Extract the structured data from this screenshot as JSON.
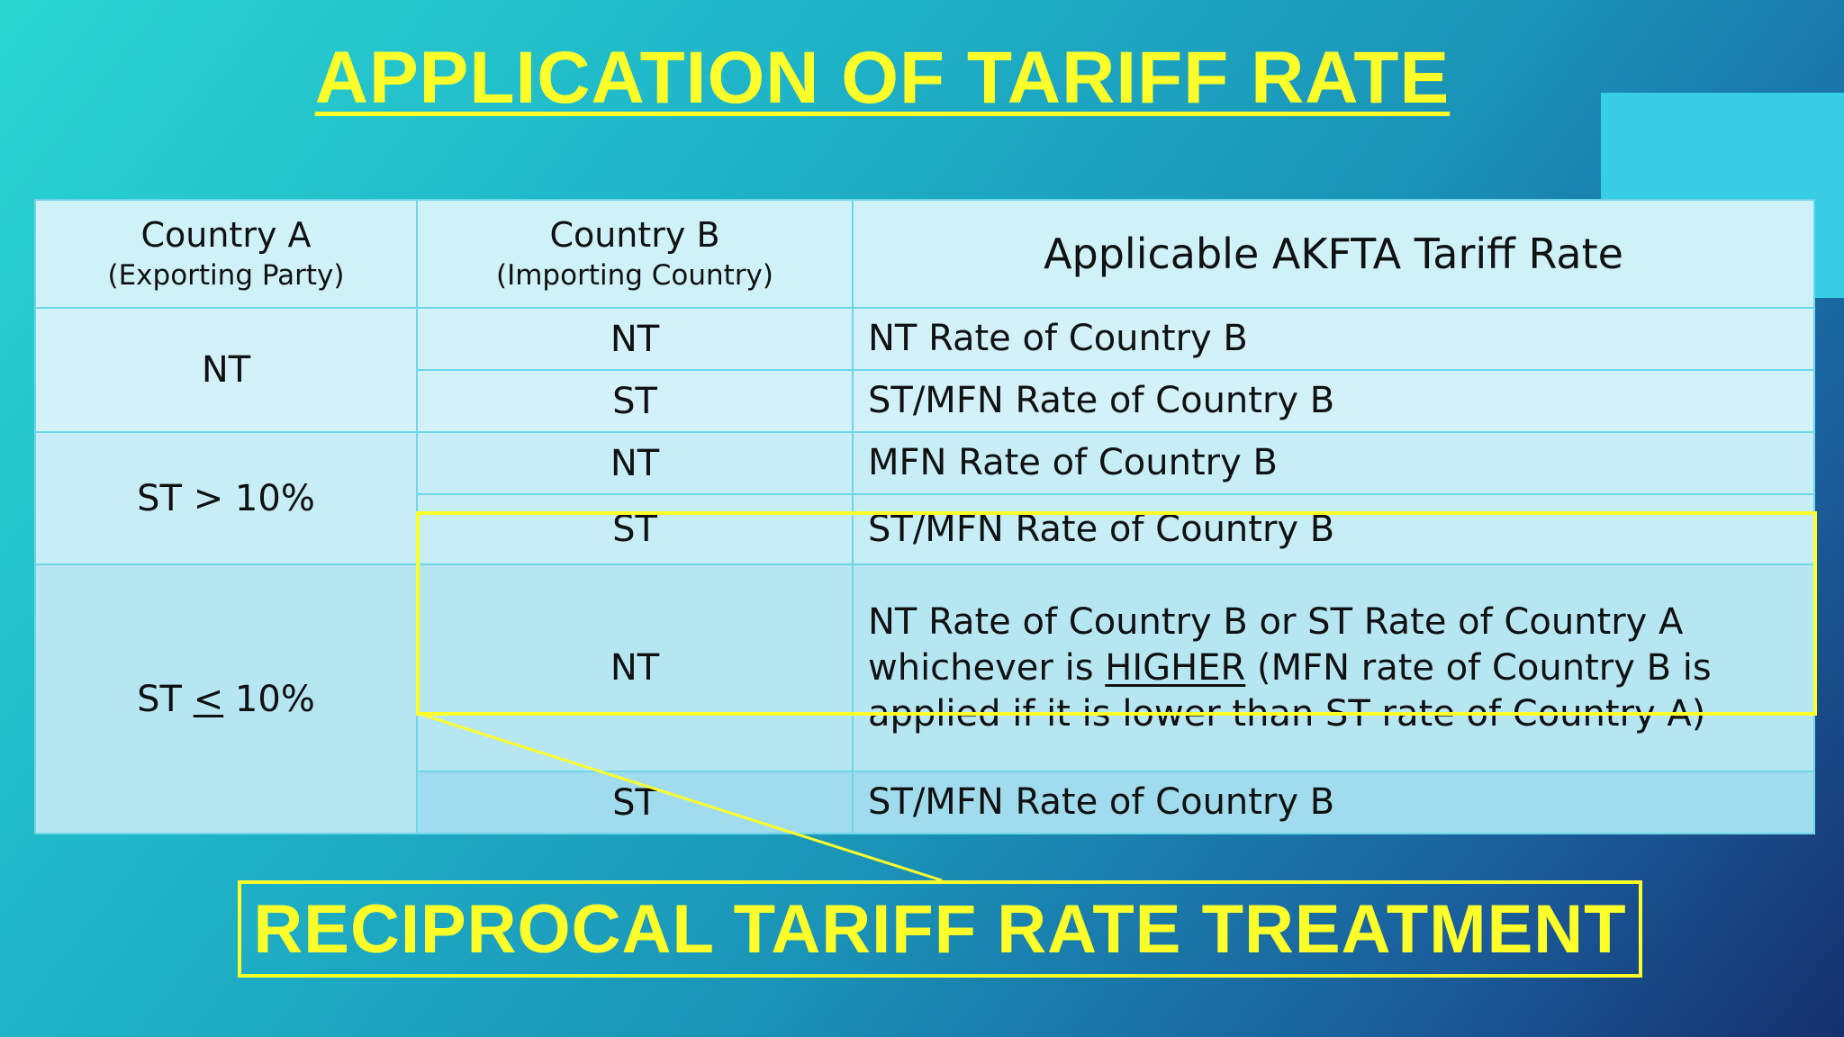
{
  "slide": {
    "title": "APPLICATION OF TARIFF RATE",
    "callout": "RECIPROCAL TARIFF RATE TREATMENT"
  },
  "table": {
    "headers": {
      "country_a": "Country A",
      "country_a_sub": "(Exporting Party)",
      "country_b": "Country B",
      "country_b_sub": "(Importing Country)",
      "rate": "Applicable AKFTA Tariff Rate"
    },
    "groups": [
      {
        "country_a": "NT",
        "rows": [
          {
            "country_b": "NT",
            "rate": "NT Rate of Country B"
          },
          {
            "country_b": "ST",
            "rate": "ST/MFN Rate of Country B"
          }
        ]
      },
      {
        "country_a": "ST > 10%",
        "rows": [
          {
            "country_b": "NT",
            "rate": "MFN Rate of Country B"
          },
          {
            "country_b": "ST",
            "rate": "ST/MFN Rate of Country B"
          }
        ]
      },
      {
        "country_a_prefix": "ST ",
        "country_a_symbol": "<",
        "country_a_suffix": " 10%",
        "rows": [
          {
            "country_b": "NT",
            "rate_line1": "NT Rate of Country B or ST Rate of Country A",
            "rate_line2_pre": "whichever is ",
            "rate_line2_em": "HIGHER",
            "rate_line2_post": " (MFN rate of Country B is",
            "rate_line3": "applied if it is lower than ST rate of Country A)"
          },
          {
            "country_b": "ST",
            "rate": "ST/MFN Rate of Country B"
          }
        ]
      }
    ]
  },
  "colors": {
    "title_yellow": "#ffff2a",
    "table_border": "#6fd6ea",
    "header_bg": "#cff1f8"
  }
}
